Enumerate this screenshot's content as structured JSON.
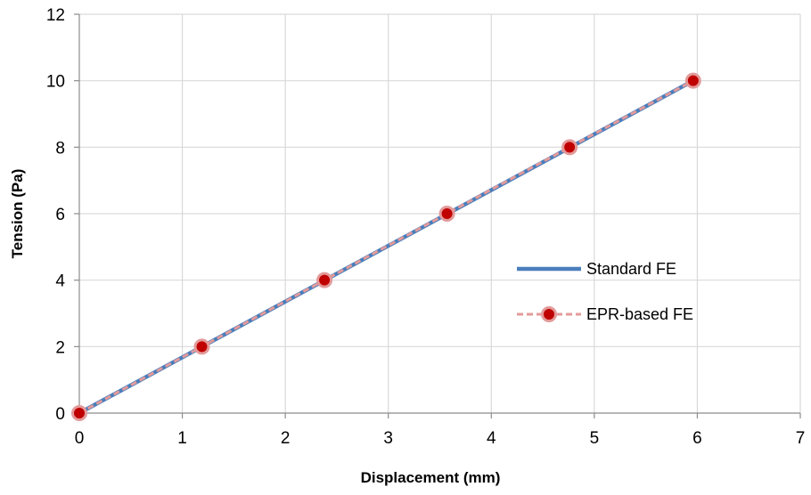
{
  "chart_data": {
    "type": "line",
    "title": "",
    "xlabel": "Displacement (mm)",
    "ylabel": "Tension (Pa)",
    "xlim": [
      0,
      7
    ],
    "ylim": [
      0,
      12
    ],
    "x_ticks": [
      "0",
      "1",
      "2",
      "3",
      "4",
      "5",
      "6",
      "7"
    ],
    "y_ticks": [
      "0",
      "2",
      "4",
      "6",
      "8",
      "10",
      "12"
    ],
    "grid": true,
    "legend_position": "right",
    "series": [
      {
        "name": "Standard FE",
        "style": "solid line, no markers",
        "color": "#4a7ebb",
        "x": [
          0,
          5.96
        ],
        "y": [
          0,
          10
        ]
      },
      {
        "name": "EPR-based FE",
        "style": "dashed line with circle markers",
        "color": "#e39a9a",
        "marker_color": "#c00000",
        "x": [
          0,
          1.19,
          2.38,
          3.57,
          4.76,
          5.96
        ],
        "y": [
          0,
          2,
          4,
          6,
          8,
          10
        ]
      }
    ]
  }
}
